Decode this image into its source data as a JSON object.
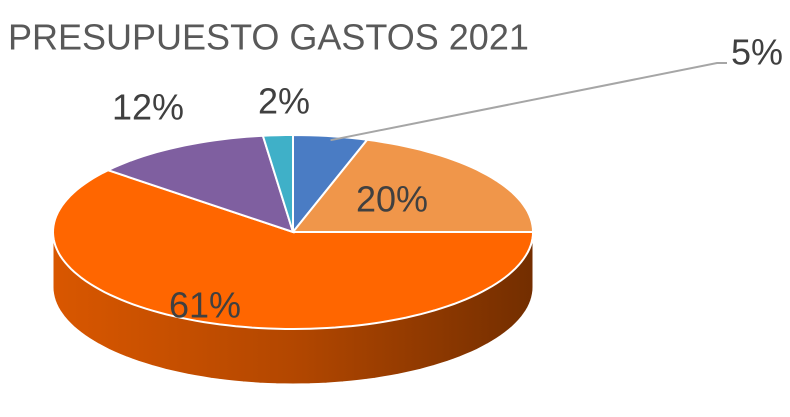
{
  "chart_data": {
    "type": "pie3d",
    "title": "PRESUPUESTO GASTOS 2021",
    "values": [
      5,
      20,
      61,
      12,
      2
    ],
    "value_labels": [
      "5%",
      "20%",
      "61%",
      "12%",
      "2%"
    ],
    "colors": [
      "#4a7cc4",
      "#f0964a",
      "#ff6600",
      "#7f5fa0",
      "#3fb0c8"
    ]
  }
}
